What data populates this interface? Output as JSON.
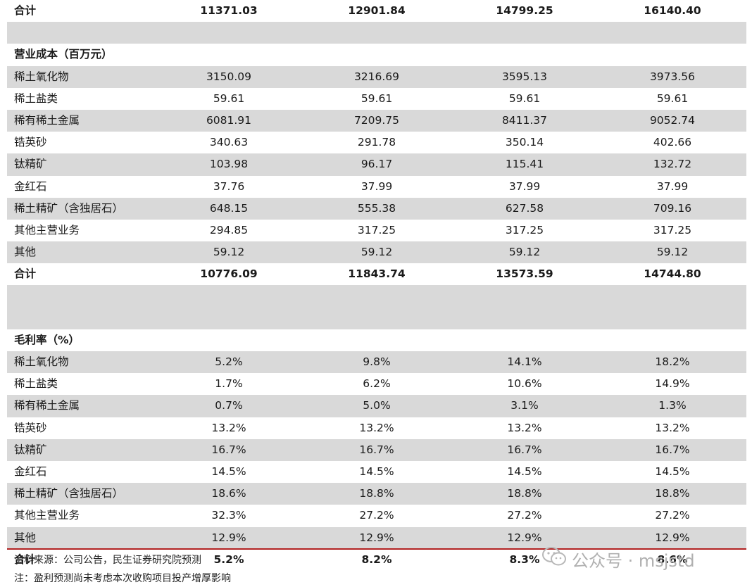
{
  "rows": [
    {
      "type": "total",
      "shade": false,
      "label": "合计",
      "values": [
        "11371.03",
        "12901.84",
        "14799.25",
        "16140.40"
      ]
    },
    {
      "type": "spacer",
      "shade": true,
      "label": "",
      "values": [
        "",
        "",
        "",
        ""
      ]
    },
    {
      "type": "header",
      "shade": false,
      "label": "营业成本（百万元）",
      "values": [
        "",
        "",
        "",
        ""
      ]
    },
    {
      "type": "data",
      "shade": true,
      "label": "稀土氧化物",
      "values": [
        "3150.09",
        "3216.69",
        "3595.13",
        "3973.56"
      ]
    },
    {
      "type": "data",
      "shade": false,
      "label": "稀土盐类",
      "values": [
        "59.61",
        "59.61",
        "59.61",
        "59.61"
      ]
    },
    {
      "type": "data",
      "shade": true,
      "label": "稀有稀土金属",
      "values": [
        "6081.91",
        "7209.75",
        "8411.37",
        "9052.74"
      ]
    },
    {
      "type": "data",
      "shade": false,
      "label": "锆英砂",
      "values": [
        "340.63",
        "291.78",
        "350.14",
        "402.66"
      ]
    },
    {
      "type": "data",
      "shade": true,
      "label": "钛精矿",
      "values": [
        "103.98",
        "96.17",
        "115.41",
        "132.72"
      ]
    },
    {
      "type": "data",
      "shade": false,
      "label": "金红石",
      "values": [
        "37.76",
        "37.99",
        "37.99",
        "37.99"
      ]
    },
    {
      "type": "data",
      "shade": true,
      "label": "稀土精矿（含独居石）",
      "values": [
        "648.15",
        "555.38",
        "627.58",
        "709.16"
      ]
    },
    {
      "type": "data",
      "shade": false,
      "label": "其他主营业务",
      "values": [
        "294.85",
        "317.25",
        "317.25",
        "317.25"
      ]
    },
    {
      "type": "data",
      "shade": true,
      "label": "其他",
      "values": [
        "59.12",
        "59.12",
        "59.12",
        "59.12"
      ]
    },
    {
      "type": "total",
      "shade": false,
      "label": "合计",
      "values": [
        "10776.09",
        "11843.74",
        "13573.59",
        "14744.80"
      ]
    },
    {
      "type": "spacer",
      "shade": true,
      "label": "",
      "values": [
        "",
        "",
        "",
        ""
      ]
    },
    {
      "type": "spacer",
      "shade": true,
      "label": "",
      "values": [
        "",
        "",
        "",
        ""
      ]
    },
    {
      "type": "header",
      "shade": false,
      "label": "毛利率（%）",
      "values": [
        "",
        "",
        "",
        ""
      ]
    },
    {
      "type": "data",
      "shade": true,
      "label": "稀土氧化物",
      "values": [
        "5.2%",
        "9.8%",
        "14.1%",
        "18.2%"
      ]
    },
    {
      "type": "data",
      "shade": false,
      "label": "稀土盐类",
      "values": [
        "1.7%",
        "6.2%",
        "10.6%",
        "14.9%"
      ]
    },
    {
      "type": "data",
      "shade": true,
      "label": "稀有稀土金属",
      "values": [
        "0.7%",
        "5.0%",
        "3.1%",
        "1.3%"
      ]
    },
    {
      "type": "data",
      "shade": false,
      "label": "锆英砂",
      "values": [
        "13.2%",
        "13.2%",
        "13.2%",
        "13.2%"
      ]
    },
    {
      "type": "data",
      "shade": true,
      "label": "钛精矿",
      "values": [
        "16.7%",
        "16.7%",
        "16.7%",
        "16.7%"
      ]
    },
    {
      "type": "data",
      "shade": false,
      "label": "金红石",
      "values": [
        "14.5%",
        "14.5%",
        "14.5%",
        "14.5%"
      ]
    },
    {
      "type": "data",
      "shade": true,
      "label": "稀土精矿（含独居石）",
      "values": [
        "18.6%",
        "18.8%",
        "18.8%",
        "18.8%"
      ]
    },
    {
      "type": "data",
      "shade": false,
      "label": "其他主营业务",
      "values": [
        "32.3%",
        "27.2%",
        "27.2%",
        "27.2%"
      ]
    },
    {
      "type": "data",
      "shade": true,
      "label": "其他",
      "values": [
        "12.9%",
        "12.9%",
        "12.9%",
        "12.9%"
      ]
    },
    {
      "type": "total",
      "shade": false,
      "label": "合计",
      "values": [
        "5.2%",
        "8.2%",
        "8.3%",
        "8.6%"
      ]
    }
  ],
  "footer": {
    "source": "资料来源：公司公告，民生证券研究院预测",
    "note": "注：盈利预测尚未考虑本次收购项目投产增厚影响"
  },
  "watermark": {
    "text": "公众号 · msjstd",
    "icon": "wechat-icon"
  },
  "colors": {
    "shade": "#d9d9d9",
    "divider": "#b22222",
    "watermark": "#b0b0b0"
  }
}
